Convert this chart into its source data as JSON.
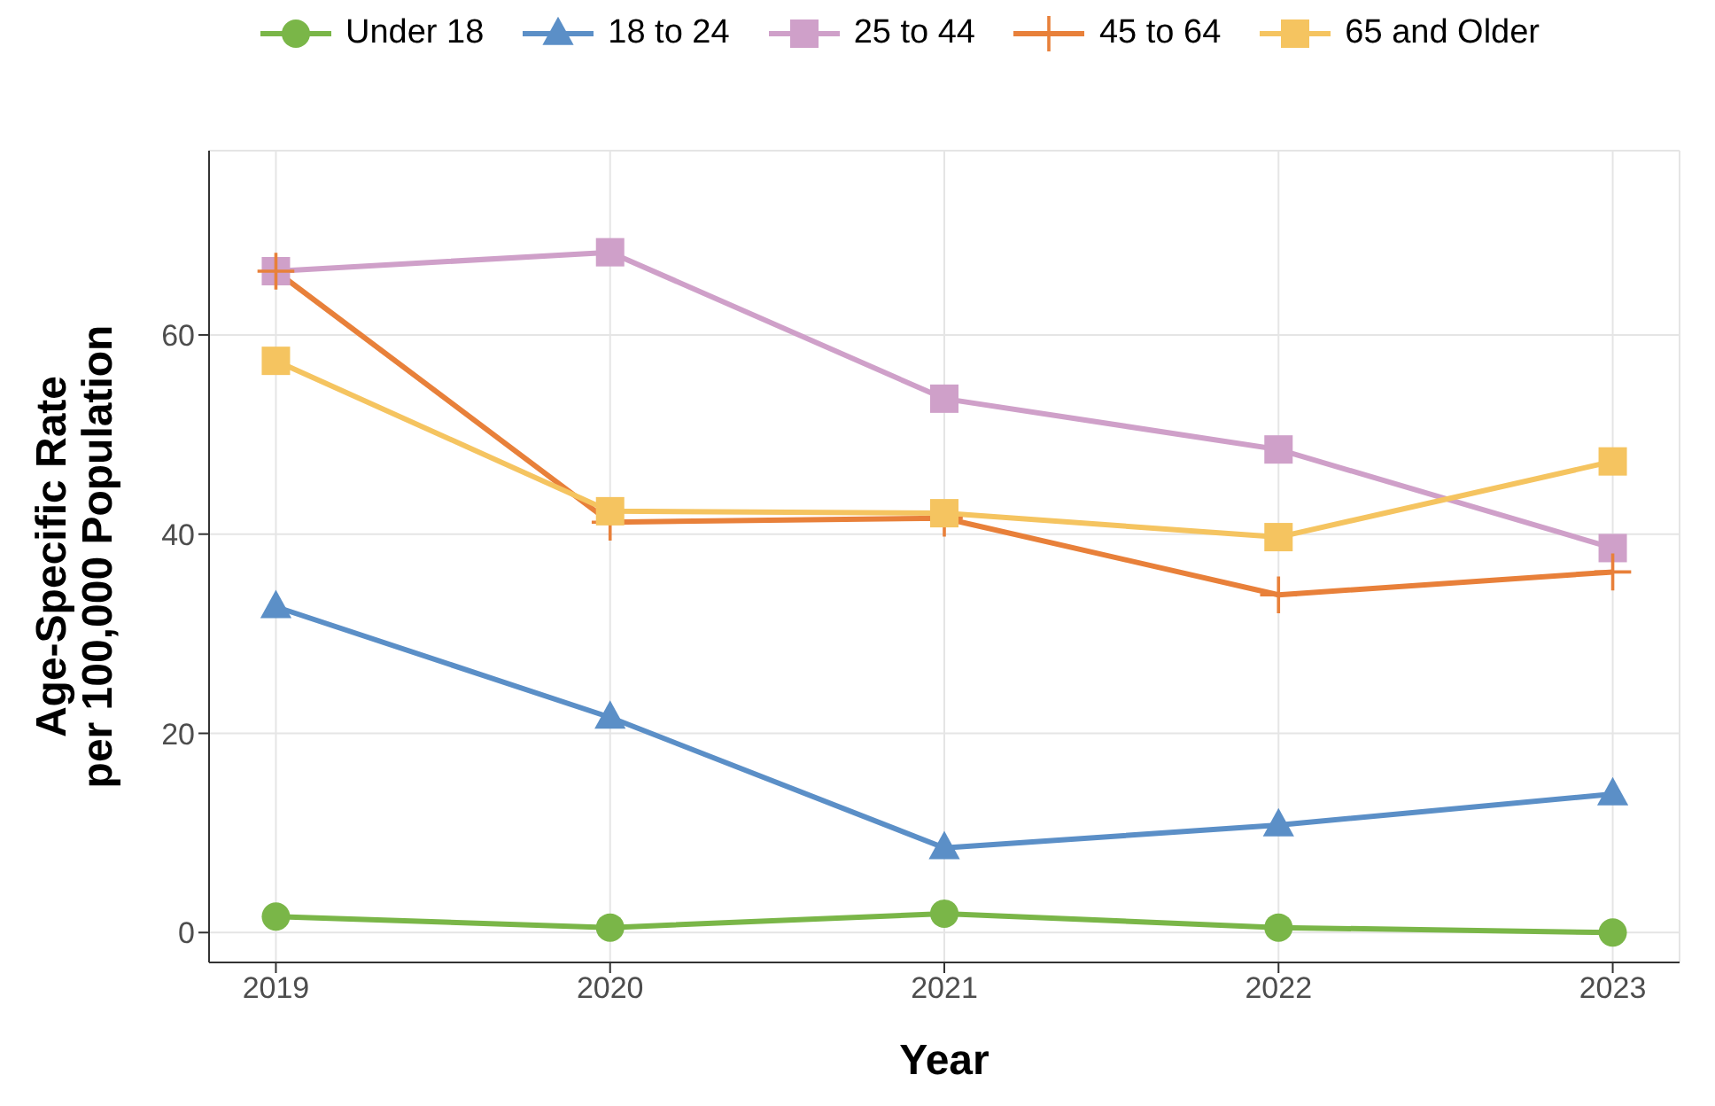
{
  "chart_data": {
    "type": "line",
    "xlabel": "Year",
    "ylabel": "Age-Specific Rate\nper 100,000 Population",
    "x": [
      2019,
      2020,
      2021,
      2022,
      2023
    ],
    "xlim": [
      2018.8,
      2023.2
    ],
    "xticks": [
      2019,
      2020,
      2021,
      2022,
      2023
    ],
    "ylim": [
      -3,
      78.5
    ],
    "yticks": [
      0,
      20,
      40,
      60
    ],
    "grid": true,
    "legend": "top",
    "line_style": "solid",
    "series": [
      {
        "name": "Under 18",
        "color": "#7ab648",
        "marker": "circle",
        "values": [
          1.6,
          0.5,
          1.9,
          0.5,
          0
        ]
      },
      {
        "name": "18 to 24",
        "color": "#5b8fc7",
        "marker": "triangle",
        "values": [
          32.7,
          21.6,
          8.5,
          10.8,
          13.9
        ]
      },
      {
        "name": "25 to 44",
        "color": "#cfa0c9",
        "marker": "square",
        "values": [
          66.4,
          68.3,
          53.6,
          48.5,
          38.6
        ]
      },
      {
        "name": "45 to 64",
        "color": "#e8803a",
        "marker": "cross",
        "values": [
          66.4,
          41.2,
          41.6,
          33.9,
          36.2
        ]
      },
      {
        "name": "65 and Older",
        "color": "#f5c460",
        "marker": "square",
        "values": [
          57.4,
          42.3,
          42.1,
          39.7,
          47.3
        ]
      }
    ]
  }
}
